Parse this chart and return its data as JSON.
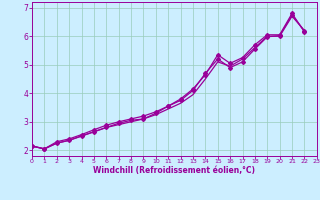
{
  "xlabel": "Windchill (Refroidissement éolien,°C)",
  "line_color": "#990099",
  "bg_color": "#cceeff",
  "grid_color": "#99ccbb",
  "xlim": [
    0,
    23
  ],
  "ylim": [
    1.8,
    7.2
  ],
  "xticks": [
    0,
    1,
    2,
    3,
    4,
    5,
    6,
    7,
    8,
    9,
    10,
    11,
    12,
    13,
    14,
    15,
    16,
    17,
    18,
    19,
    20,
    21,
    22,
    23
  ],
  "yticks": [
    2,
    3,
    4,
    5,
    6,
    7
  ],
  "series1": [
    2.15,
    2.05,
    2.25,
    2.35,
    2.5,
    2.65,
    2.8,
    2.95,
    3.05,
    3.1,
    3.3,
    3.55,
    3.8,
    4.15,
    4.65,
    5.35,
    5.05,
    5.25,
    5.7,
    6.05,
    6.05,
    6.8,
    6.15
  ],
  "series2": [
    2.15,
    2.05,
    2.25,
    2.35,
    2.5,
    2.65,
    2.8,
    2.9,
    3.0,
    3.1,
    3.25,
    3.45,
    3.65,
    3.95,
    4.5,
    5.1,
    4.95,
    5.2,
    5.6,
    6.0,
    6.0,
    6.7,
    6.2
  ],
  "series3": [
    2.15,
    2.05,
    2.3,
    2.4,
    2.55,
    2.72,
    2.88,
    3.0,
    3.1,
    3.2,
    3.35,
    3.55,
    3.75,
    4.1,
    4.7,
    5.2,
    4.9,
    5.1,
    5.55,
    5.98,
    6.02,
    6.75,
    6.18
  ]
}
